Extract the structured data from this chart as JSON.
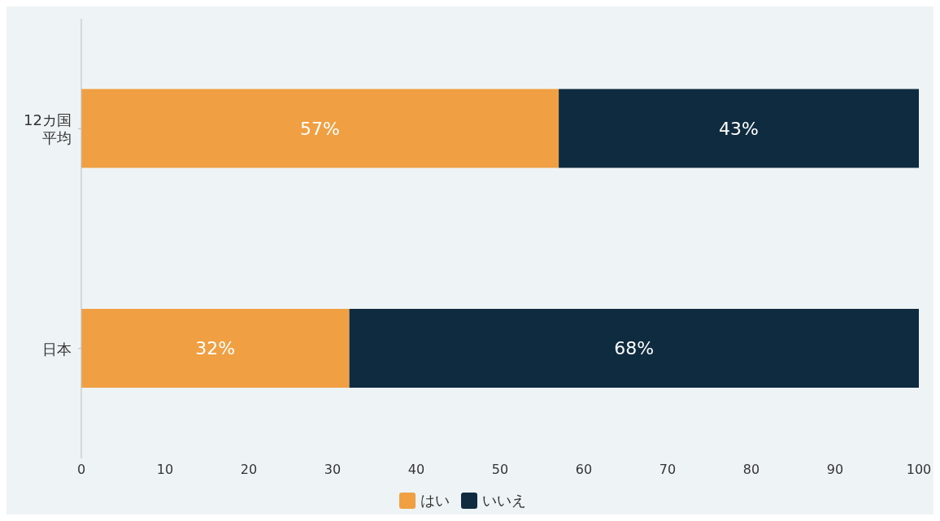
{
  "chart_data": {
    "type": "bar",
    "orientation": "horizontal",
    "stacked": true,
    "categories": [
      "12カ国平均",
      "日本"
    ],
    "series": [
      {
        "name": "はい",
        "color": "#f0a042",
        "values": [
          57,
          32
        ],
        "value_labels": [
          "57%",
          "32%"
        ]
      },
      {
        "name": "いいえ",
        "color": "#0f2b40",
        "values": [
          43,
          68
        ],
        "value_labels": [
          "43%",
          "68%"
        ]
      }
    ],
    "xlim": [
      0,
      100
    ],
    "xticks": [
      0,
      10,
      20,
      30,
      40,
      50,
      60,
      70,
      80,
      90,
      100
    ],
    "grid": false,
    "legend": "bottom"
  }
}
